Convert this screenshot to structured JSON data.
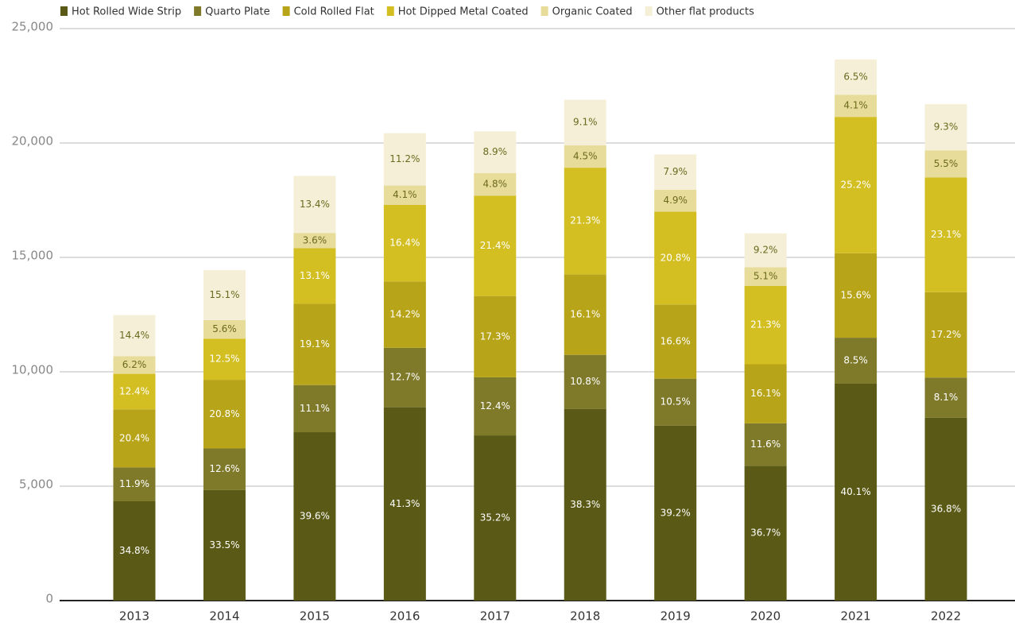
{
  "chart_data": {
    "type": "stacked_bar",
    "categories": [
      "2013",
      "2014",
      "2015",
      "2016",
      "2017",
      "2018",
      "2019",
      "2020",
      "2021",
      "2022"
    ],
    "series": [
      {
        "name": "Hot Rolled Wide Strip",
        "color": "#5a5a16",
        "values": [
          4340,
          4830,
          7360,
          8450,
          7220,
          8380,
          7650,
          5890,
          9480,
          7990
        ],
        "share_labels": [
          "34.8%",
          "33.5%",
          "39.6%",
          "41.3%",
          "35.2%",
          "38.3%",
          "39.2%",
          "36.7%",
          "40.1%",
          "36.8%"
        ]
      },
      {
        "name": "Quarto Plate",
        "color": "#7f7a2a",
        "values": [
          1480,
          1820,
          2060,
          2600,
          2540,
          2360,
          2050,
          1860,
          2010,
          1760
        ],
        "share_labels": [
          "11.9%",
          "12.6%",
          "11.1%",
          "12.7%",
          "12.4%",
          "10.8%",
          "10.5%",
          "11.6%",
          "8.5%",
          "8.1%"
        ]
      },
      {
        "name": "Cold Rolled Flat",
        "color": "#b8a418",
        "values": [
          2540,
          3000,
          3550,
          2900,
          3550,
          3520,
          3240,
          2580,
          3690,
          3730
        ],
        "share_labels": [
          "20.4%",
          "20.8%",
          "19.1%",
          "14.2%",
          "17.3%",
          "16.1%",
          "16.6%",
          "16.1%",
          "15.6%",
          "17.2%"
        ]
      },
      {
        "name": "Hot Dipped Metal Coated",
        "color": "#d4bf22",
        "values": [
          1550,
          1800,
          2430,
          3350,
          4390,
          4660,
          4060,
          3420,
          5960,
          5010
        ],
        "share_labels": [
          "12.4%",
          "12.5%",
          "13.1%",
          "16.4%",
          "21.4%",
          "21.3%",
          "20.8%",
          "21.3%",
          "25.2%",
          "23.1%"
        ]
      },
      {
        "name": "Organic Coated",
        "color": "#e8dc9a",
        "values": [
          770,
          810,
          670,
          840,
          980,
          980,
          960,
          820,
          970,
          1190
        ],
        "share_labels": [
          "6.2%",
          "5.6%",
          "3.6%",
          "4.1%",
          "4.8%",
          "4.5%",
          "4.9%",
          "5.1%",
          "4.1%",
          "5.5%"
        ]
      },
      {
        "name": "Other flat products",
        "color": "#f5efd8",
        "values": [
          1800,
          2180,
          2490,
          2290,
          1830,
          1990,
          1540,
          1480,
          1540,
          2020
        ],
        "share_labels": [
          "14.4%",
          "15.1%",
          "13.4%",
          "11.2%",
          "8.9%",
          "9.1%",
          "7.9%",
          "9.2%",
          "6.5%",
          "9.3%"
        ]
      }
    ],
    "ylim": [
      0,
      25000
    ],
    "yticks": [
      0,
      {
        "value": 5000,
        "label": "5,000"
      },
      {
        "value": 10000,
        "label": "10,000"
      },
      {
        "value": 15000,
        "label": "15,000"
      },
      {
        "value": 20000,
        "label": "20,000"
      },
      {
        "value": 25000,
        "label": "25,000"
      }
    ],
    "grid": true,
    "legend": "top"
  }
}
